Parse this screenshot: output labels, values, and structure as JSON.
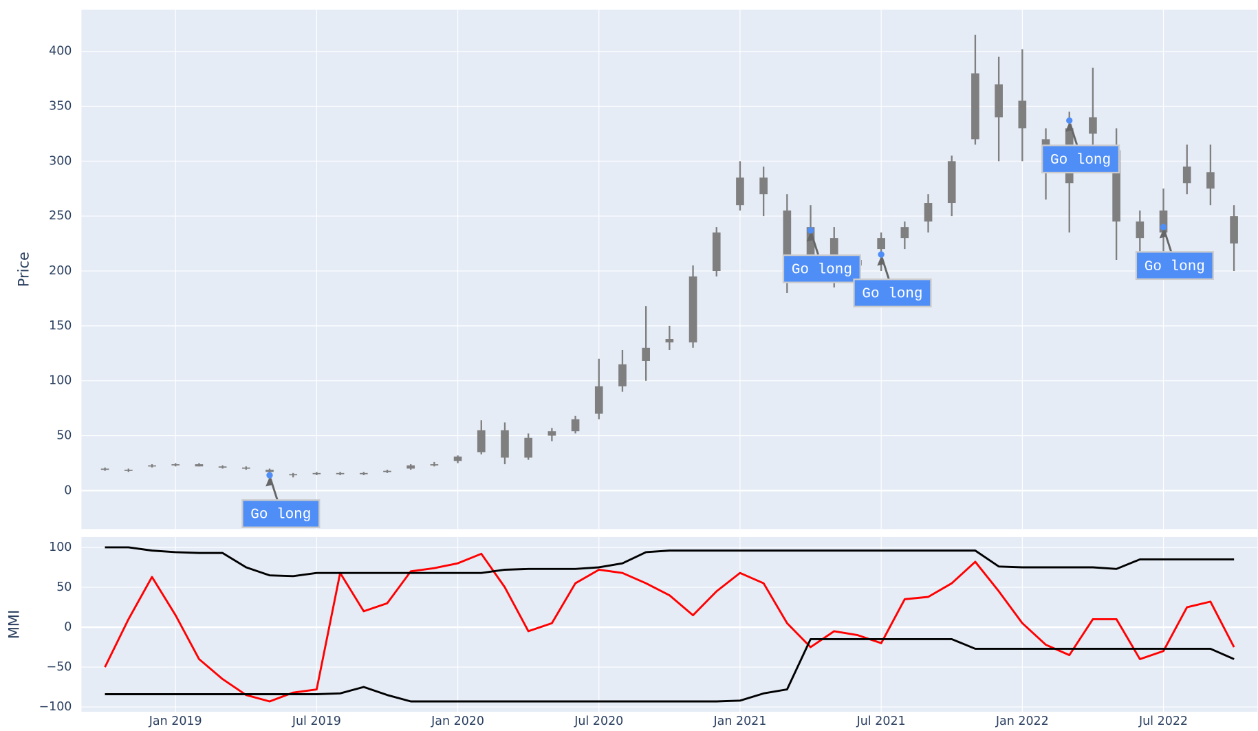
{
  "chart_data": [
    {
      "type": "candlestick",
      "ylabel": "Price",
      "x": [
        "2018-10",
        "2018-11",
        "2018-12",
        "2019-01",
        "2019-02",
        "2019-03",
        "2019-04",
        "2019-05",
        "2019-06",
        "2019-07",
        "2019-08",
        "2019-09",
        "2019-10",
        "2019-11",
        "2019-12",
        "2020-01",
        "2020-02",
        "2020-03",
        "2020-04",
        "2020-05",
        "2020-06",
        "2020-07",
        "2020-08",
        "2020-09",
        "2020-10",
        "2020-11",
        "2020-12",
        "2021-01",
        "2021-02",
        "2021-03",
        "2021-04",
        "2021-05",
        "2021-06",
        "2021-07",
        "2021-08",
        "2021-09",
        "2021-10",
        "2021-11",
        "2021-12",
        "2022-01",
        "2022-02",
        "2022-03",
        "2022-04",
        "2022-05",
        "2022-06",
        "2022-07",
        "2022-08",
        "2022-09",
        "2022-10"
      ],
      "open": [
        20,
        19,
        22,
        23,
        24,
        22,
        21,
        19,
        14,
        15,
        16,
        15,
        17,
        20,
        23,
        27,
        35,
        55,
        30,
        50,
        54,
        70,
        95,
        118,
        135,
        135,
        200,
        260,
        285,
        255,
        215,
        230,
        205,
        220,
        230,
        245,
        262,
        320,
        370,
        355,
        320,
        280,
        340,
        310,
        245,
        235,
        280,
        290,
        250
      ],
      "high": [
        21,
        20,
        24,
        25,
        25,
        23,
        22,
        20,
        16,
        17,
        17,
        17,
        19,
        24,
        26,
        32,
        64,
        62,
        52,
        57,
        68,
        120,
        128,
        168,
        150,
        205,
        240,
        300,
        295,
        270,
        260,
        240,
        215,
        235,
        245,
        270,
        305,
        415,
        395,
        402,
        330,
        345,
        385,
        330,
        255,
        275,
        315,
        315,
        260
      ],
      "low": [
        18,
        17,
        21,
        22,
        22,
        20,
        19,
        16,
        12,
        14,
        14,
        14,
        16,
        19,
        22,
        25,
        33,
        24,
        28,
        45,
        52,
        65,
        90,
        100,
        128,
        130,
        195,
        255,
        250,
        180,
        205,
        185,
        190,
        200,
        220,
        235,
        250,
        315,
        300,
        300,
        265,
        235,
        300,
        210,
        210,
        215,
        270,
        260,
        200
      ],
      "close": [
        19,
        18,
        23,
        24,
        22,
        21,
        20,
        17,
        15,
        16,
        15,
        16,
        18,
        23,
        24,
        31,
        55,
        30,
        48,
        54,
        65,
        95,
        115,
        130,
        138,
        195,
        235,
        285,
        270,
        215,
        240,
        205,
        210,
        230,
        240,
        262,
        300,
        380,
        340,
        330,
        295,
        330,
        325,
        245,
        230,
        255,
        295,
        275,
        225
      ],
      "color": "#7f7f7f",
      "xlim": [
        "2018-09",
        "2022-11"
      ],
      "ylim": [
        -35,
        438
      ],
      "yticks": [
        0,
        50,
        100,
        150,
        200,
        250,
        300,
        350,
        400
      ],
      "grid": true,
      "annotations": [
        {
          "x": "2019-05",
          "y": 14,
          "text": "Go long"
        },
        {
          "x": "2021-04",
          "y": 237,
          "text": "Go long"
        },
        {
          "x": "2021-07",
          "y": 215,
          "text": "Go long"
        },
        {
          "x": "2022-03",
          "y": 337,
          "text": "Go long"
        },
        {
          "x": "2022-07",
          "y": 240,
          "text": "Go long"
        }
      ],
      "annotation_color": "#4f8ef7"
    },
    {
      "type": "line",
      "ylabel": "MMI",
      "x": [
        "2018-10",
        "2018-11",
        "2018-12",
        "2019-01",
        "2019-02",
        "2019-03",
        "2019-04",
        "2019-05",
        "2019-06",
        "2019-07",
        "2019-08",
        "2019-09",
        "2019-10",
        "2019-11",
        "2019-12",
        "2020-01",
        "2020-02",
        "2020-03",
        "2020-04",
        "2020-05",
        "2020-06",
        "2020-07",
        "2020-08",
        "2020-09",
        "2020-10",
        "2020-11",
        "2020-12",
        "2021-01",
        "2021-02",
        "2021-03",
        "2021-04",
        "2021-05",
        "2021-06",
        "2021-07",
        "2021-08",
        "2021-09",
        "2021-10",
        "2021-11",
        "2021-12",
        "2022-01",
        "2022-02",
        "2022-03",
        "2022-04",
        "2022-05",
        "2022-06",
        "2022-07",
        "2022-08",
        "2022-09",
        "2022-10"
      ],
      "series": [
        {
          "color": "#ff0000",
          "values": [
            -50,
            10,
            63,
            15,
            -40,
            -65,
            -85,
            -93,
            -82,
            -78,
            68,
            20,
            30,
            70,
            74,
            80,
            92,
            50,
            -5,
            5,
            55,
            72,
            68,
            55,
            40,
            15,
            45,
            68,
            55,
            5,
            -25,
            -5,
            -10,
            -20,
            35,
            38,
            55,
            82,
            45,
            5,
            -22,
            -35,
            10,
            10,
            -40,
            -30,
            25,
            32,
            -25
          ]
        },
        {
          "color": "#000000",
          "values": [
            100,
            100,
            96,
            94,
            93,
            93,
            75,
            65,
            64,
            68,
            68,
            68,
            68,
            68,
            68,
            68,
            68,
            72,
            73,
            73,
            73,
            75,
            80,
            94,
            96,
            96,
            96,
            96,
            96,
            96,
            96,
            96,
            96,
            96,
            96,
            96,
            96,
            96,
            76,
            75,
            75,
            75,
            75,
            73,
            85,
            85,
            85,
            85,
            85
          ]
        },
        {
          "color": "#000000",
          "values": [
            -84,
            -84,
            -84,
            -84,
            -84,
            -84,
            -84,
            -84,
            -84,
            -84,
            -83,
            -75,
            -85,
            -93,
            -93,
            -93,
            -93,
            -93,
            -93,
            -93,
            -93,
            -93,
            -93,
            -93,
            -93,
            -93,
            -93,
            -92,
            -83,
            -78,
            -15,
            -15,
            -15,
            -15,
            -15,
            -15,
            -15,
            -27,
            -27,
            -27,
            -27,
            -27,
            -27,
            -27,
            -27,
            -27,
            -27,
            -27,
            -40
          ]
        }
      ],
      "xlim": [
        "2018-09",
        "2022-11"
      ],
      "xticks": [
        {
          "value": "2019-01",
          "label": "Jan 2019"
        },
        {
          "value": "2019-07",
          "label": "Jul 2019"
        },
        {
          "value": "2020-01",
          "label": "Jan 2020"
        },
        {
          "value": "2020-07",
          "label": "Jul 2020"
        },
        {
          "value": "2021-01",
          "label": "Jan 2021"
        },
        {
          "value": "2021-07",
          "label": "Jul 2021"
        },
        {
          "value": "2022-01",
          "label": "Jan 2022"
        },
        {
          "value": "2022-07",
          "label": "Jul 2022"
        }
      ],
      "ylim": [
        -106,
        113
      ],
      "yticks": [
        {
          "value": -100,
          "label": "−100"
        },
        {
          "value": -50,
          "label": "−50"
        },
        0,
        50,
        100
      ],
      "grid": true
    }
  ]
}
